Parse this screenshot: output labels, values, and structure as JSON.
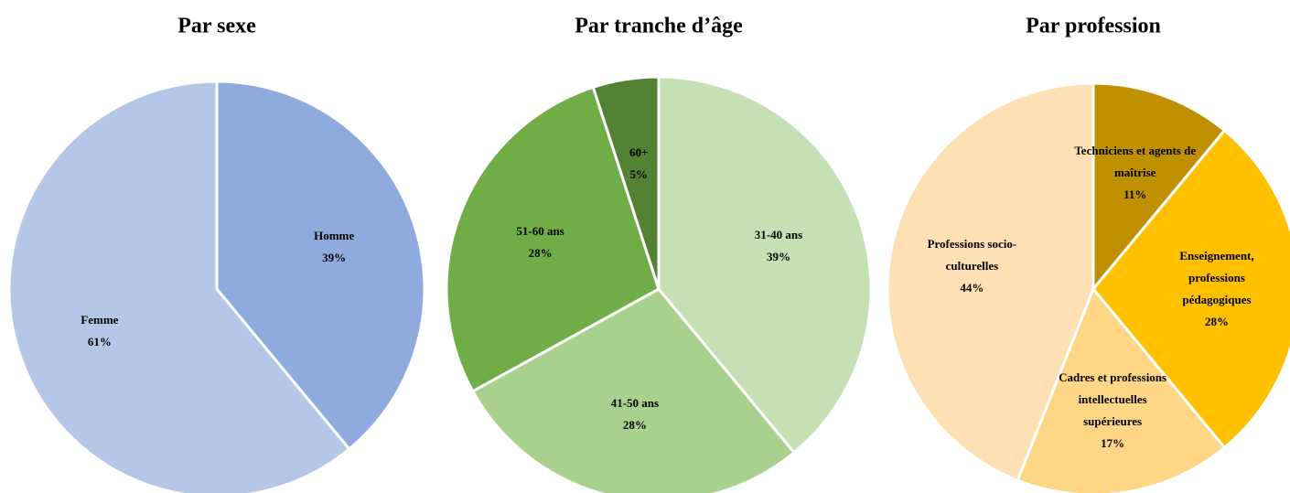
{
  "chart_data": [
    {
      "type": "pie",
      "title": "Par sexe",
      "categories": [
        "Homme",
        "Femme"
      ],
      "values": [
        39,
        61
      ],
      "value_labels": [
        "39%",
        "61%"
      ],
      "colors": [
        "#8faadc",
        "#b4c7e7"
      ]
    },
    {
      "type": "pie",
      "title": "Par tranche d’âge",
      "categories": [
        "31-40 ans",
        "41-50 ans",
        "51-60 ans",
        "60+"
      ],
      "values": [
        39,
        28,
        28,
        5
      ],
      "value_labels": [
        "39%",
        "28%",
        "28%",
        "5%"
      ],
      "colors": [
        "#c5e0b4",
        "#a9d18e",
        "#70ad47",
        "#548235"
      ]
    },
    {
      "type": "pie",
      "title": "Par profession",
      "categories": [
        "Techniciens et agents de maîtrise",
        "Enseignement, professions pédagogiques",
        "Cadres et professions intellectuelles supérieures",
        "Professions socio-culturelles"
      ],
      "values": [
        11,
        28,
        17,
        44
      ],
      "value_labels": [
        "11%",
        "28%",
        "17%",
        "44%"
      ],
      "colors": [
        "#bf9000",
        "#ffc000",
        "#ffd685",
        "#fee0b4"
      ]
    }
  ]
}
